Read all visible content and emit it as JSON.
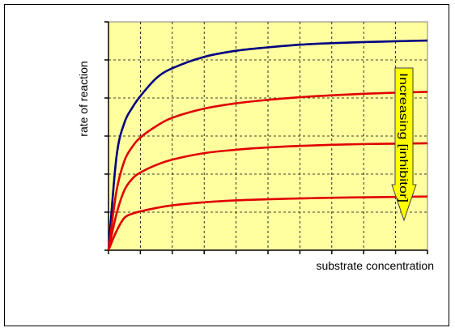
{
  "chart_data": {
    "type": "line",
    "title": "",
    "xlabel": "substrate concentration",
    "ylabel": "rate of reaction",
    "xlim": [
      0,
      10
    ],
    "ylim": [
      0,
      6
    ],
    "grid": true,
    "plot_background": "#ffffa0",
    "annotation": {
      "text": "Increasing [inhibitor]",
      "fill": "#ffff00",
      "direction": "down"
    },
    "series": [
      {
        "color": "#000080",
        "x": [
          0,
          0.25,
          0.5,
          0.75,
          1,
          1.5,
          2,
          3,
          4,
          5,
          6,
          7,
          8,
          9,
          10
        ],
        "y": [
          0,
          2.45,
          3.35,
          3.75,
          4.05,
          4.52,
          4.78,
          5.08,
          5.24,
          5.33,
          5.4,
          5.44,
          5.47,
          5.49,
          5.51
        ]
      },
      {
        "color": "#e00000",
        "x": [
          0,
          0.25,
          0.5,
          0.75,
          1,
          1.5,
          2,
          3,
          4,
          5,
          6,
          7,
          8,
          9,
          10
        ],
        "y": [
          0,
          1.55,
          2.35,
          2.72,
          2.96,
          3.26,
          3.48,
          3.72,
          3.86,
          3.95,
          4.02,
          4.07,
          4.11,
          4.14,
          4.16
        ]
      },
      {
        "color": "#e00000",
        "x": [
          0,
          0.25,
          0.5,
          0.75,
          1,
          1.5,
          2,
          3,
          4,
          5,
          6,
          7,
          8,
          9,
          10
        ],
        "y": [
          0,
          0.95,
          1.58,
          1.88,
          2.04,
          2.24,
          2.38,
          2.55,
          2.64,
          2.7,
          2.74,
          2.77,
          2.79,
          2.8,
          2.81
        ]
      },
      {
        "color": "#e00000",
        "x": [
          0,
          0.25,
          0.5,
          0.75,
          1,
          1.5,
          2,
          3,
          4,
          5,
          6,
          7,
          8,
          9,
          10
        ],
        "y": [
          0,
          0.5,
          0.85,
          0.96,
          1.02,
          1.11,
          1.18,
          1.26,
          1.31,
          1.34,
          1.36,
          1.38,
          1.39,
          1.4,
          1.41
        ]
      }
    ]
  }
}
